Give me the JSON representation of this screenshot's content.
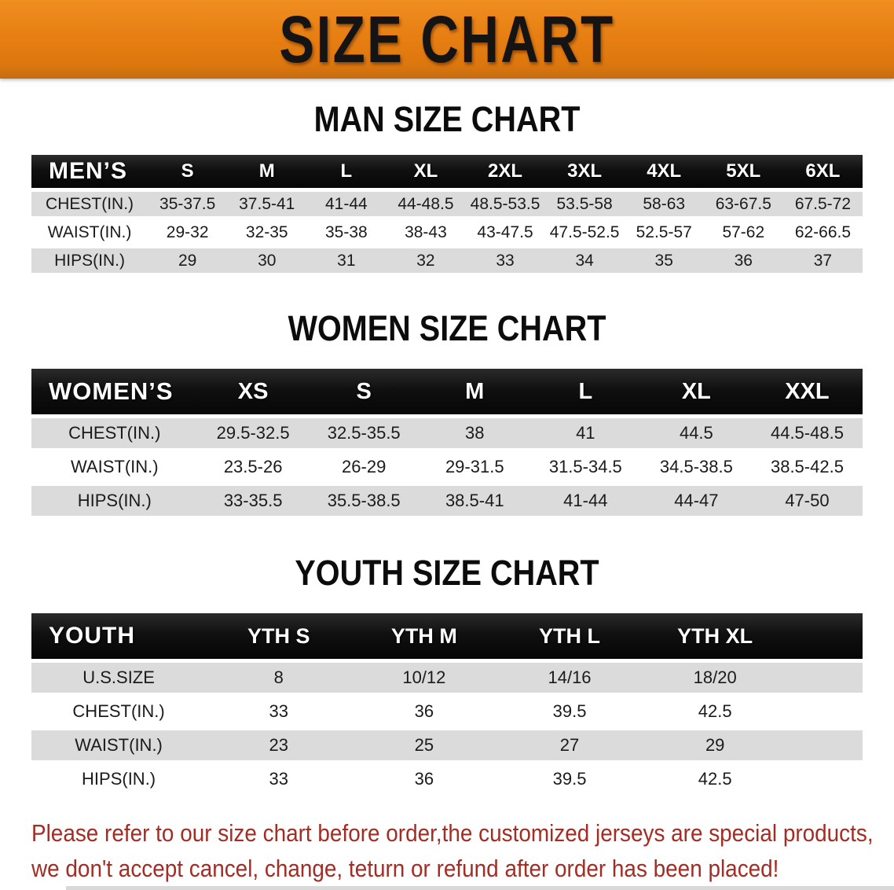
{
  "banner": {
    "title": "SIZE CHART"
  },
  "colors": {
    "banner_bg": "#E67E12",
    "header_bar": "#121212",
    "row_gray": "#DBDBDB",
    "disclaimer_red": "#A32D24"
  },
  "sections": [
    {
      "id": "mens",
      "title": "MAN SIZE CHART",
      "corner": "MEN’S",
      "columns": [
        "S",
        "M",
        "L",
        "XL",
        "2XL",
        "3XL",
        "4XL",
        "5XL",
        "6XL"
      ],
      "rows": [
        {
          "label": "CHEST(IN.)",
          "values": [
            "35-37.5",
            "37.5-41",
            "41-44",
            "44-48.5",
            "48.5-53.5",
            "53.5-58",
            "58-63",
            "63-67.5",
            "67.5-72"
          ]
        },
        {
          "label": "WAIST(IN.)",
          "values": [
            "29-32",
            "32-35",
            "35-38",
            "38-43",
            "43-47.5",
            "47.5-52.5",
            "52.5-57",
            "57-62",
            "62-66.5"
          ]
        },
        {
          "label": "HIPS(IN.)",
          "values": [
            "29",
            "30",
            "31",
            "32",
            "33",
            "34",
            "35",
            "36",
            "37"
          ]
        }
      ]
    },
    {
      "id": "womens",
      "title": "WOMEN SIZE CHART",
      "corner": "WOMEN’S",
      "columns": [
        "XS",
        "S",
        "M",
        "L",
        "XL",
        "XXL"
      ],
      "rows": [
        {
          "label": "CHEST(IN.)",
          "values": [
            "29.5-32.5",
            "32.5-35.5",
            "38",
            "41",
            "44.5",
            "44.5-48.5"
          ]
        },
        {
          "label": "WAIST(IN.)",
          "values": [
            "23.5-26",
            "26-29",
            "29-31.5",
            "31.5-34.5",
            "34.5-38.5",
            "38.5-42.5"
          ]
        },
        {
          "label": "HIPS(IN.)",
          "values": [
            "33-35.5",
            "35.5-38.5",
            "38.5-41",
            "41-44",
            "44-47",
            "47-50"
          ]
        }
      ]
    },
    {
      "id": "youth",
      "title": "YOUTH SIZE CHART",
      "corner": "YOUTH",
      "columns": [
        "YTH S",
        "YTH M",
        "YTH L",
        "YTH XL"
      ],
      "rows": [
        {
          "label": "U.S.SIZE",
          "values": [
            "8",
            "10/12",
            "14/16",
            "18/20"
          ]
        },
        {
          "label": "CHEST(IN.)",
          "values": [
            "33",
            "36",
            "39.5",
            "42.5"
          ]
        },
        {
          "label": "WAIST(IN.)",
          "values": [
            "23",
            "25",
            "27",
            "29"
          ]
        },
        {
          "label": "HIPS(IN.)",
          "values": [
            "33",
            "36",
            "39.5",
            "42.5"
          ]
        }
      ]
    }
  ],
  "disclaimer": {
    "lines": [
      "Please refer to our size chart before order,the customized jerseys are special products,",
      "we don't accept cancel, change, teturn or refund after order has been placed!"
    ]
  }
}
